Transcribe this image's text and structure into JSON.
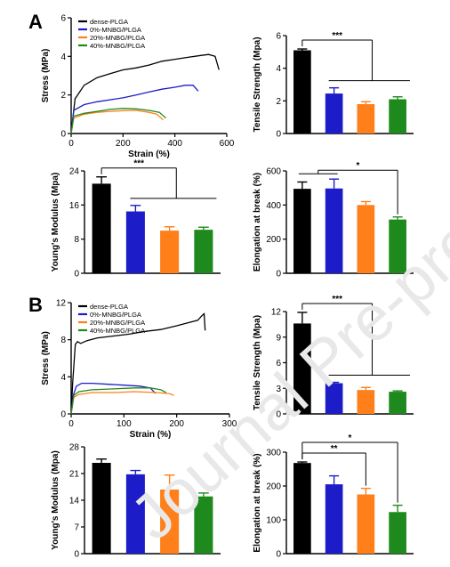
{
  "colors": {
    "s0": "#000000",
    "s1": "#1c1cc8",
    "s2": "#ff7f1a",
    "s3": "#1e8a1e"
  },
  "legend": [
    "dense-PLGA",
    "0%-MNBG/PLGA",
    "20%-MNBG/PLGA",
    "40%-MNBG/PLGA"
  ],
  "watermark": "Journal Pre-proof",
  "chart_data": [
    {
      "id": "A1",
      "panel": "A",
      "type": "line",
      "xlabel": "Strain (%)",
      "ylabel": "Stress (MPa)",
      "xlim": [
        0,
        600
      ],
      "ylim": [
        0,
        6
      ],
      "xticks": [
        0,
        200,
        400,
        600
      ],
      "yticks": [
        0,
        2,
        4,
        6
      ],
      "series": [
        {
          "name": "dense-PLGA",
          "x": [
            0,
            15,
            50,
            100,
            150,
            200,
            250,
            300,
            350,
            400,
            450,
            500,
            530,
            555,
            570
          ],
          "y": [
            0,
            1.8,
            2.5,
            2.9,
            3.1,
            3.3,
            3.4,
            3.55,
            3.75,
            3.85,
            3.95,
            4.05,
            4.1,
            4.0,
            3.3
          ]
        },
        {
          "name": "0%-MNBG/PLGA",
          "x": [
            0,
            10,
            50,
            100,
            150,
            200,
            250,
            300,
            350,
            400,
            440,
            470,
            490
          ],
          "y": [
            0,
            1.2,
            1.5,
            1.65,
            1.75,
            1.85,
            2.0,
            2.15,
            2.3,
            2.4,
            2.5,
            2.5,
            2.2
          ]
        },
        {
          "name": "20%-MNBG/PLGA",
          "x": [
            0,
            10,
            50,
            100,
            150,
            200,
            250,
            300,
            330,
            355
          ],
          "y": [
            0,
            0.8,
            1.0,
            1.1,
            1.15,
            1.18,
            1.2,
            1.1,
            1.0,
            0.7
          ]
        },
        {
          "name": "40%-MNBG/PLGA",
          "x": [
            0,
            10,
            50,
            100,
            150,
            200,
            250,
            300,
            340,
            365
          ],
          "y": [
            0,
            0.9,
            1.05,
            1.15,
            1.25,
            1.3,
            1.28,
            1.2,
            1.1,
            0.8
          ]
        }
      ]
    },
    {
      "id": "A2",
      "panel": "A",
      "type": "bar",
      "ylabel": "Tensile Strength (Mpa)",
      "ylim": [
        0,
        6
      ],
      "yticks": [
        0,
        2,
        4,
        6
      ],
      "categories": [
        "dense-PLGA",
        "0%-MNBG/PLGA",
        "20%-MNBG/PLGA",
        "40%-MNBG/PLGA"
      ],
      "values": [
        5.1,
        2.45,
        1.8,
        2.1
      ],
      "errors": [
        0.08,
        0.35,
        0.15,
        0.15
      ],
      "annotations": [
        {
          "text": "***",
          "from": 0,
          "to": [
            1,
            3
          ]
        }
      ]
    },
    {
      "id": "A3",
      "panel": "A",
      "type": "bar",
      "ylabel": "Young's Modulus (Mpa)",
      "ylim": [
        0,
        24
      ],
      "yticks": [
        0,
        8,
        16,
        24
      ],
      "categories": [
        "dense-PLGA",
        "0%-MNBG/PLGA",
        "20%-MNBG/PLGA",
        "40%-MNBG/PLGA"
      ],
      "values": [
        21,
        14.5,
        10,
        10.2
      ],
      "errors": [
        1.6,
        1.4,
        0.9,
        0.6
      ],
      "annotations": [
        {
          "text": "***",
          "from": 0,
          "to": [
            1,
            3
          ]
        }
      ]
    },
    {
      "id": "A4",
      "panel": "A",
      "type": "bar",
      "ylabel": "Elongation at break (%)",
      "ylim": [
        0,
        600
      ],
      "yticks": [
        0,
        200,
        400,
        600
      ],
      "categories": [
        "dense-PLGA",
        "0%-MNBG/PLGA",
        "20%-MNBG/PLGA",
        "40%-MNBG/PLGA"
      ],
      "values": [
        495,
        497,
        400,
        315
      ],
      "errors": [
        40,
        55,
        20,
        15
      ],
      "annotations": [
        {
          "text": "*",
          "from": [
            0,
            1
          ],
          "to": 3
        }
      ]
    },
    {
      "id": "B1",
      "panel": "B",
      "type": "line",
      "xlabel": "Strain (%)",
      "ylabel": "Stress (MPa)",
      "xlim": [
        0,
        300
      ],
      "ylim": [
        0,
        12
      ],
      "xticks": [
        0,
        100,
        200,
        300
      ],
      "yticks": [
        0,
        4,
        8,
        12
      ],
      "series": [
        {
          "name": "dense-PLGA",
          "x": [
            0,
            3,
            8,
            12,
            18,
            30,
            50,
            80,
            110,
            140,
            170,
            200,
            220,
            240,
            248,
            252,
            254
          ],
          "y": [
            0,
            3.5,
            7.5,
            7.8,
            7.6,
            7.9,
            8.2,
            8.4,
            8.6,
            8.9,
            9.1,
            9.5,
            9.8,
            10.1,
            10.6,
            10.8,
            9.0
          ]
        },
        {
          "name": "0%-MNBG/PLGA",
          "x": [
            0,
            4,
            10,
            20,
            40,
            70,
            100,
            130,
            150,
            160
          ],
          "y": [
            0,
            2.0,
            3.0,
            3.3,
            3.3,
            3.2,
            3.1,
            3.0,
            2.8,
            2.2
          ]
        },
        {
          "name": "20%-MNBG/PLGA",
          "x": [
            0,
            5,
            15,
            40,
            80,
            120,
            160,
            185,
            195
          ],
          "y": [
            0,
            1.8,
            2.1,
            2.3,
            2.3,
            2.4,
            2.3,
            2.2,
            2.0
          ]
        },
        {
          "name": "40%-MNBG/PLGA",
          "x": [
            0,
            5,
            15,
            40,
            80,
            120,
            150,
            170,
            180
          ],
          "y": [
            0,
            2.0,
            2.4,
            2.6,
            2.7,
            2.8,
            2.8,
            2.6,
            2.3
          ]
        }
      ]
    },
    {
      "id": "B2",
      "panel": "B",
      "type": "bar",
      "ylabel": "Tensile Strength (Mpa)",
      "ylim": [
        0,
        12
      ],
      "yticks": [
        0,
        3,
        6,
        9,
        12
      ],
      "categories": [
        "dense-PLGA",
        "0%-MNBG/PLGA",
        "20%-MNBG/PLGA",
        "40%-MNBG/PLGA"
      ],
      "values": [
        10.6,
        3.6,
        2.8,
        2.6
      ],
      "errors": [
        1.3,
        0.1,
        0.3,
        0.1
      ],
      "annotations": [
        {
          "text": "***",
          "from": 0,
          "to": [
            1,
            3
          ]
        }
      ]
    },
    {
      "id": "B3",
      "panel": "B",
      "type": "bar",
      "ylabel": "Young's Modulus (Mpa)",
      "ylim": [
        0,
        28
      ],
      "yticks": [
        0,
        7,
        14,
        21,
        28
      ],
      "categories": [
        "dense-PLGA",
        "0%-MNBG/PLGA",
        "20%-MNBG/PLGA",
        "40%-MNBG/PLGA"
      ],
      "values": [
        23.8,
        20.8,
        16.8,
        15
      ],
      "errors": [
        1.0,
        1.0,
        3.8,
        0.9
      ],
      "annotations": []
    },
    {
      "id": "B4",
      "panel": "B",
      "type": "bar",
      "ylabel": "Elongation at break (%)",
      "ylim": [
        0,
        300
      ],
      "yticks": [
        0,
        100,
        200,
        300
      ],
      "categories": [
        "dense-PLGA",
        "0%-MNBG/PLGA",
        "20%-MNBG/PLGA",
        "40%-MNBG/PLGA"
      ],
      "values": [
        268,
        205,
        175,
        123
      ],
      "errors": [
        3,
        25,
        18,
        20
      ],
      "annotations": [
        {
          "text": "**",
          "from": 0,
          "to": 2
        },
        {
          "text": "*",
          "from": 0,
          "to": 3
        }
      ]
    }
  ]
}
